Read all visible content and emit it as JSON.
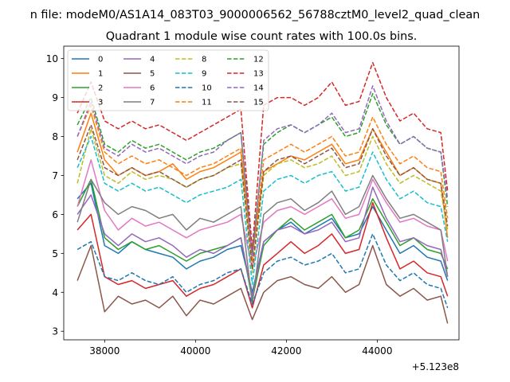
{
  "chart_data": {
    "type": "line",
    "suptitle": "n file: modeM0/AS1A14_083T03_9000006562_56788cztM0_level2_quad_clean",
    "title": "Quadrant 1 module wise count rates with 100.0s bins.",
    "xlabel": "",
    "ylabel": "",
    "x_offset_label": "+5.123e8",
    "xlim": [
      37100,
      45800
    ],
    "ylim": [
      2.78,
      10.32
    ],
    "xticks": [
      {
        "value": 38000,
        "label": "38000"
      },
      {
        "value": 40000,
        "label": "40000"
      },
      {
        "value": 42000,
        "label": "42000"
      },
      {
        "value": 44000,
        "label": "44000"
      }
    ],
    "yticks": [
      {
        "value": 3,
        "label": "3"
      },
      {
        "value": 4,
        "label": "4"
      },
      {
        "value": 5,
        "label": "5"
      },
      {
        "value": 6,
        "label": "6"
      },
      {
        "value": 7,
        "label": "7"
      },
      {
        "value": 8,
        "label": "8"
      },
      {
        "value": 9,
        "label": "9"
      },
      {
        "value": 10,
        "label": "10"
      }
    ],
    "grid": false,
    "legend_position": "upper-left",
    "legend_columns": 4,
    "x": [
      37400,
      37700,
      38000,
      38300,
      38600,
      38900,
      39200,
      39500,
      39800,
      40100,
      40400,
      40700,
      41000,
      41250,
      41500,
      41800,
      42100,
      42400,
      42700,
      43000,
      43300,
      43600,
      43900,
      44200,
      44500,
      44800,
      45100,
      45400,
      45550
    ],
    "series": [
      {
        "name": "0",
        "color": "#1f77b4",
        "style": "solid",
        "values": [
          6.4,
          6.8,
          5.2,
          5.0,
          5.3,
          5.1,
          5.0,
          4.9,
          4.6,
          4.8,
          4.9,
          5.1,
          5.2,
          4.0,
          5.3,
          5.6,
          5.8,
          5.5,
          5.7,
          5.9,
          5.4,
          5.5,
          6.2,
          5.6,
          5.0,
          5.2,
          4.9,
          4.8,
          4.3
        ]
      },
      {
        "name": "1",
        "color": "#ff7f0e",
        "style": "solid",
        "values": [
          7.6,
          8.6,
          7.4,
          7.0,
          7.2,
          7.0,
          7.1,
          7.3,
          6.9,
          7.1,
          7.2,
          7.4,
          7.6,
          5.0,
          7.1,
          7.3,
          7.5,
          7.4,
          7.6,
          7.8,
          7.3,
          7.4,
          8.2,
          7.6,
          7.0,
          7.2,
          6.9,
          6.8,
          5.4
        ]
      },
      {
        "name": "2",
        "color": "#2ca02c",
        "style": "solid",
        "values": [
          6.2,
          6.9,
          5.4,
          5.1,
          5.3,
          5.1,
          5.2,
          5.0,
          4.8,
          5.0,
          5.1,
          5.2,
          5.4,
          3.8,
          5.2,
          5.6,
          5.9,
          5.6,
          5.8,
          6.0,
          5.4,
          5.6,
          6.4,
          5.8,
          5.2,
          5.4,
          5.1,
          5.0,
          4.6
        ]
      },
      {
        "name": "3",
        "color": "#d62728",
        "style": "solid",
        "values": [
          5.6,
          6.0,
          4.4,
          4.2,
          4.3,
          4.1,
          4.2,
          4.3,
          3.9,
          4.1,
          4.2,
          4.4,
          4.6,
          3.6,
          4.7,
          5.0,
          5.3,
          5.0,
          5.2,
          5.5,
          5.0,
          5.1,
          6.3,
          5.4,
          4.6,
          4.8,
          4.5,
          4.4,
          3.9
        ]
      },
      {
        "name": "4",
        "color": "#9467bd",
        "style": "solid",
        "values": [
          6.0,
          6.5,
          5.5,
          5.2,
          5.5,
          5.3,
          5.4,
          5.2,
          4.9,
          5.1,
          5.0,
          5.2,
          5.4,
          3.9,
          5.3,
          5.6,
          5.7,
          5.5,
          5.6,
          5.8,
          5.3,
          5.4,
          6.7,
          5.9,
          5.3,
          5.4,
          5.2,
          5.1,
          4.4
        ]
      },
      {
        "name": "5",
        "color": "#8c564b",
        "style": "solid",
        "values": [
          4.3,
          5.2,
          3.5,
          3.9,
          3.7,
          3.8,
          3.6,
          3.9,
          3.4,
          3.8,
          3.7,
          3.9,
          4.1,
          3.3,
          4.0,
          4.3,
          4.4,
          4.2,
          4.1,
          4.4,
          4.0,
          4.2,
          5.2,
          4.2,
          3.9,
          4.1,
          3.8,
          3.9,
          3.2
        ]
      },
      {
        "name": "6",
        "color": "#e377c2",
        "style": "solid",
        "values": [
          6.2,
          7.4,
          6.1,
          5.6,
          5.9,
          5.7,
          5.8,
          5.6,
          5.4,
          5.6,
          5.7,
          5.8,
          6.0,
          4.6,
          5.8,
          6.1,
          6.2,
          6.0,
          6.2,
          6.4,
          5.9,
          6.0,
          6.9,
          6.3,
          5.8,
          5.9,
          5.7,
          5.6,
          4.8
        ]
      },
      {
        "name": "7",
        "color": "#7f7f7f",
        "style": "solid",
        "values": [
          5.8,
          6.9,
          6.3,
          6.0,
          6.2,
          6.1,
          5.9,
          6.0,
          5.6,
          5.9,
          5.8,
          6.0,
          6.2,
          3.7,
          6.0,
          6.3,
          6.4,
          6.1,
          6.3,
          6.6,
          6.0,
          6.2,
          7.0,
          6.4,
          5.9,
          6.0,
          5.8,
          5.6,
          4.4
        ]
      },
      {
        "name": "8",
        "color": "#bcbd22",
        "style": "dashed",
        "values": [
          6.8,
          8.2,
          7.0,
          6.8,
          7.1,
          6.9,
          7.0,
          6.9,
          6.7,
          6.9,
          7.0,
          7.2,
          7.3,
          4.5,
          7.0,
          7.3,
          7.4,
          7.2,
          7.3,
          7.5,
          7.0,
          7.1,
          8.0,
          7.3,
          6.8,
          7.0,
          6.8,
          6.6,
          5.6
        ]
      },
      {
        "name": "9",
        "color": "#17becf",
        "style": "dashed",
        "values": [
          7.2,
          8.0,
          6.8,
          6.6,
          6.8,
          6.6,
          6.7,
          6.5,
          6.3,
          6.5,
          6.6,
          6.7,
          6.9,
          4.2,
          6.6,
          6.9,
          7.0,
          6.8,
          7.0,
          7.1,
          6.6,
          6.7,
          7.6,
          6.9,
          6.4,
          6.6,
          6.3,
          6.2,
          5.3
        ]
      },
      {
        "name": "10",
        "color": "#1f77b4",
        "style": "dashed",
        "values": [
          5.1,
          5.3,
          4.4,
          4.3,
          4.5,
          4.3,
          4.2,
          4.4,
          4.0,
          4.2,
          4.3,
          4.5,
          4.6,
          3.7,
          4.5,
          4.8,
          4.9,
          4.7,
          4.8,
          5.0,
          4.5,
          4.6,
          5.5,
          4.7,
          4.3,
          4.5,
          4.2,
          4.1,
          3.6
        ]
      },
      {
        "name": "11",
        "color": "#ff7f0e",
        "style": "dashed",
        "values": [
          8.0,
          8.8,
          7.6,
          7.3,
          7.5,
          7.3,
          7.4,
          7.2,
          7.0,
          7.2,
          7.3,
          7.5,
          7.7,
          4.8,
          7.4,
          7.6,
          7.8,
          7.6,
          7.8,
          8.0,
          7.5,
          7.6,
          8.5,
          7.8,
          7.3,
          7.5,
          7.2,
          7.1,
          5.9
        ]
      },
      {
        "name": "12",
        "color": "#2ca02c",
        "style": "dashed",
        "values": [
          8.3,
          9.0,
          7.8,
          7.6,
          7.9,
          7.7,
          7.8,
          7.6,
          7.4,
          7.6,
          7.7,
          7.9,
          8.1,
          5.0,
          7.8,
          8.1,
          8.3,
          8.1,
          8.3,
          8.5,
          8.0,
          8.1,
          9.1,
          8.3,
          7.8,
          8.0,
          7.7,
          7.6,
          6.2
        ]
      },
      {
        "name": "13",
        "color": "#d62728",
        "style": "dashed",
        "values": [
          8.6,
          9.4,
          8.4,
          8.2,
          8.4,
          8.2,
          8.3,
          8.1,
          7.9,
          8.1,
          8.3,
          8.5,
          8.7,
          5.1,
          8.8,
          9.0,
          9.0,
          8.8,
          9.0,
          9.4,
          8.8,
          8.9,
          9.9,
          9.0,
          8.4,
          8.6,
          8.2,
          8.1,
          6.6
        ]
      },
      {
        "name": "14",
        "color": "#9467bd",
        "style": "dashed",
        "values": [
          8.0,
          8.9,
          7.7,
          7.5,
          7.8,
          7.6,
          7.7,
          7.5,
          7.3,
          7.5,
          7.6,
          7.9,
          8.1,
          4.9,
          7.9,
          8.2,
          8.3,
          8.1,
          8.3,
          8.6,
          8.1,
          8.2,
          9.3,
          8.4,
          7.8,
          8.0,
          7.7,
          7.6,
          6.4
        ]
      },
      {
        "name": "15",
        "color": "#8c564b",
        "style": "dashed",
        "values": [
          7.4,
          8.3,
          7.2,
          7.0,
          7.2,
          7.0,
          7.1,
          6.9,
          6.7,
          6.9,
          7.0,
          7.2,
          7.4,
          4.6,
          7.1,
          7.4,
          7.5,
          7.3,
          7.5,
          7.7,
          7.2,
          7.3,
          8.2,
          7.5,
          7.0,
          7.2,
          6.9,
          6.8,
          5.7
        ]
      }
    ]
  }
}
